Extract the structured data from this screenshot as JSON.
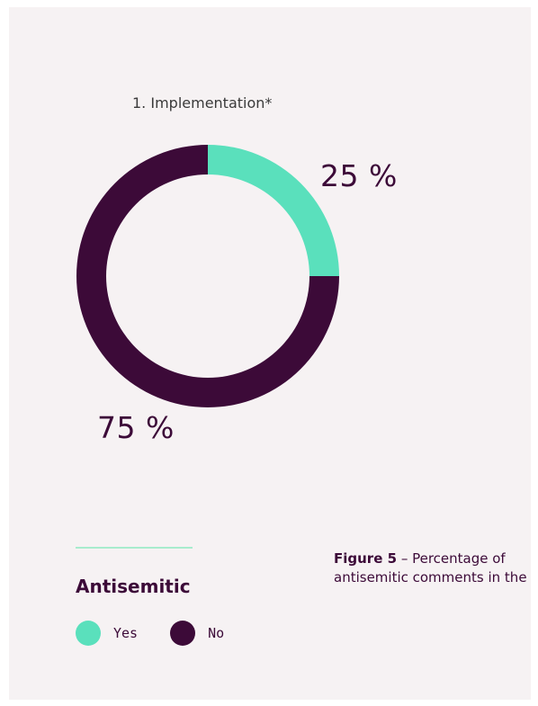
{
  "chart_data": {
    "type": "pie",
    "title": "1. Implementation*",
    "categories": [
      "Yes",
      "No"
    ],
    "values": [
      25,
      75
    ],
    "value_labels": [
      "25 %",
      "75 %"
    ],
    "colors": [
      "#5ae0bc",
      "#3c0a38"
    ],
    "legend": {
      "title": "Antisemitic",
      "items": [
        {
          "label": "Yes",
          "color": "#5ae0bc"
        },
        {
          "label": "No",
          "color": "#3c0a38"
        }
      ]
    }
  },
  "caption": {
    "figure_label": "Figure 5",
    "text": " – Percentage of antisemitic comments in the"
  }
}
